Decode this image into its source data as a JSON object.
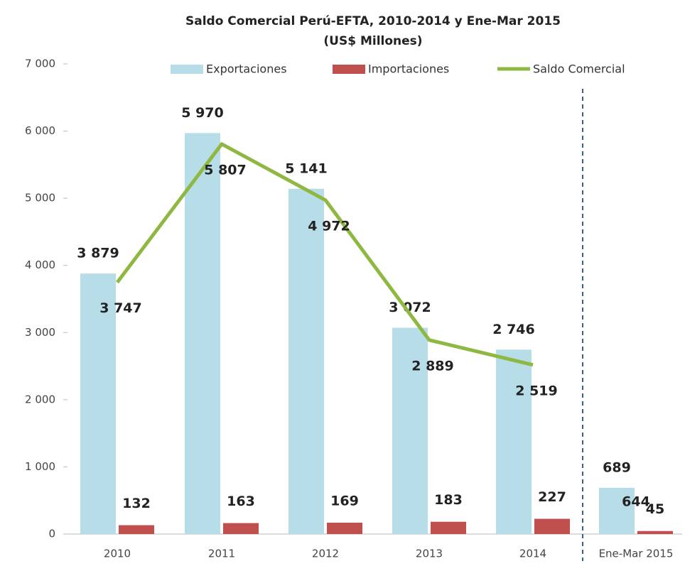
{
  "chart_data": {
    "type": "bar-line",
    "title": "Saldo Comercial Perú-EFTA, 2010-2014 y Ene-Mar 2015",
    "subtitle": "(US$ Millones)",
    "categories": [
      "2010",
      "2011",
      "2012",
      "2013",
      "2014",
      "Ene-Mar 2015"
    ],
    "series": [
      {
        "name": "Exportaciones",
        "color": "#b7dde8",
        "kind": "bar",
        "values": [
          3879,
          5970,
          5141,
          3072,
          2746,
          689
        ],
        "value_labels": [
          "3 879",
          "5 970",
          "5 141",
          "3 072",
          "2 746",
          "689"
        ]
      },
      {
        "name": "Importaciones",
        "color": "#c0504d",
        "kind": "bar",
        "values": [
          132,
          163,
          169,
          183,
          227,
          45
        ],
        "value_labels": [
          "132",
          "163",
          "169",
          "183",
          "227",
          "45"
        ]
      },
      {
        "name": "Saldo Comercial",
        "color": "#8fb843",
        "kind": "line",
        "values": [
          3747,
          5807,
          4972,
          2889,
          2519,
          644
        ],
        "value_labels": [
          "3 747",
          "5 807",
          "4 972",
          "2 889",
          "2 519",
          "644"
        ]
      }
    ],
    "ylim": [
      0,
      7000
    ],
    "yticks": [
      0,
      {
        "value": 1000,
        "label": "1 000"
      },
      {
        "value": 2000,
        "label": "2 000"
      },
      {
        "value": 3000,
        "label": "3 000"
      },
      {
        "value": 4000,
        "label": "4 000"
      },
      {
        "value": 5000,
        "label": "5 000"
      },
      {
        "value": 6000,
        "label": "6 000"
      },
      {
        "value": 7000,
        "label": "7 000"
      }
    ]
  }
}
